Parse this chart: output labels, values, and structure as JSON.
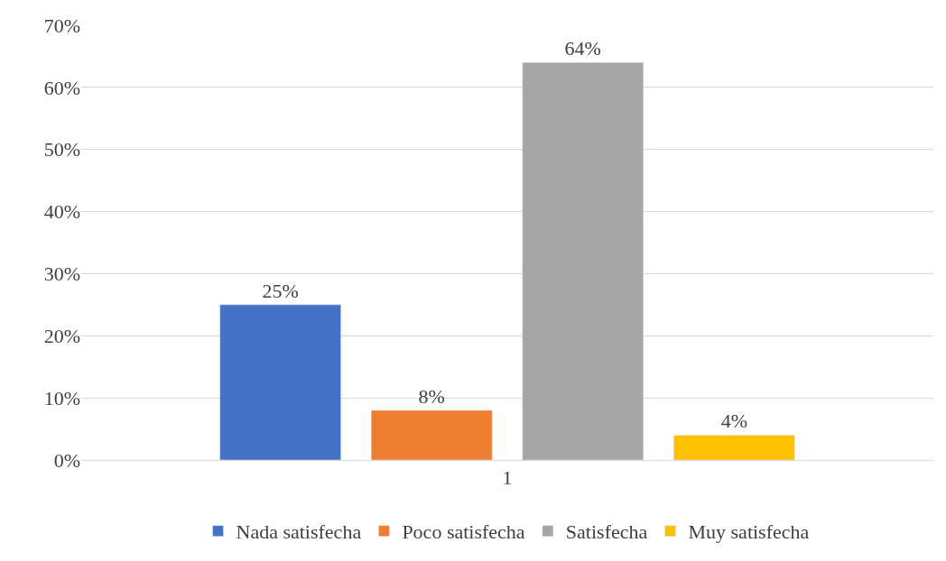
{
  "chart_data": {
    "type": "bar",
    "categories": [
      "1"
    ],
    "series": [
      {
        "name": "Nada satisfecha",
        "color": "#4472c4",
        "values": [
          25
        ],
        "value_labels": [
          "25%"
        ]
      },
      {
        "name": "Poco satisfecha",
        "color": "#ed7d31",
        "values": [
          8
        ],
        "value_labels": [
          "8%"
        ]
      },
      {
        "name": "Satisfecha",
        "color": "#a5a5a5",
        "values": [
          64
        ],
        "value_labels": [
          "64%"
        ]
      },
      {
        "name": "Muy satisfecha",
        "color": "#ffc000",
        "values": [
          4
        ],
        "value_labels": [
          "4%"
        ]
      }
    ],
    "ylim": [
      0,
      70
    ],
    "yticks": [
      {
        "value": 0,
        "label": "0%"
      },
      {
        "value": 10,
        "label": "10%"
      },
      {
        "value": 20,
        "label": "20%"
      },
      {
        "value": 30,
        "label": "30%"
      },
      {
        "value": 40,
        "label": "40%"
      },
      {
        "value": 50,
        "label": "50%"
      },
      {
        "value": 60,
        "label": "60%"
      },
      {
        "value": 70,
        "label": "70%"
      }
    ],
    "grid": "y",
    "legend": "bottom"
  }
}
